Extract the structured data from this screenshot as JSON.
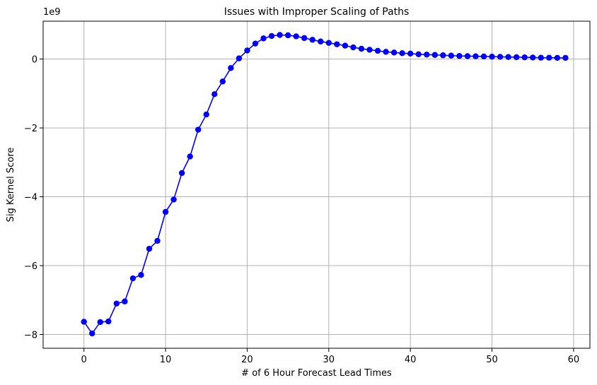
{
  "chart_data": {
    "type": "line",
    "title": "Issues with Improper Scaling of Paths",
    "xlabel": "# of 6 Hour Forecast Lead Times",
    "ylabel": "Sig Kernel Score",
    "y_offset_label": "1e9",
    "xlim": [
      -5,
      62
    ],
    "ylim": [
      -8.4,
      1.1
    ],
    "xticks": [
      0,
      10,
      20,
      30,
      40,
      50,
      60
    ],
    "xtick_labels": [
      "0",
      "10",
      "20",
      "30",
      "40",
      "50",
      "60"
    ],
    "yticks": [
      -8,
      -6,
      -4,
      -2,
      0
    ],
    "ytick_labels": [
      "−8",
      "−6",
      "−4",
      "−2",
      "0"
    ],
    "grid": true,
    "series": [
      {
        "color": "#0000ff",
        "marker": "circle",
        "x": [
          0,
          1,
          2,
          3,
          4,
          5,
          6,
          7,
          8,
          9,
          10,
          11,
          12,
          13,
          14,
          15,
          16,
          17,
          18,
          19,
          20,
          21,
          22,
          23,
          24,
          25,
          26,
          27,
          28,
          29,
          30,
          31,
          32,
          33,
          34,
          35,
          36,
          37,
          38,
          39,
          40,
          41,
          42,
          43,
          44,
          45,
          46,
          47,
          48,
          49,
          50,
          51,
          52,
          53,
          54,
          55,
          56,
          57,
          58,
          59
        ],
        "values": [
          -7.63,
          -7.97,
          -7.64,
          -7.62,
          -7.1,
          -7.04,
          -6.37,
          -6.27,
          -5.51,
          -5.28,
          -4.44,
          -4.08,
          -3.31,
          -2.83,
          -2.05,
          -1.61,
          -1.02,
          -0.65,
          -0.26,
          0.02,
          0.25,
          0.45,
          0.6,
          0.67,
          0.7,
          0.69,
          0.66,
          0.61,
          0.56,
          0.51,
          0.47,
          0.43,
          0.39,
          0.34,
          0.3,
          0.27,
          0.24,
          0.21,
          0.19,
          0.17,
          0.16,
          0.14,
          0.13,
          0.12,
          0.11,
          0.1,
          0.09,
          0.085,
          0.08,
          0.075,
          0.07,
          0.065,
          0.06,
          0.055,
          0.05,
          0.045,
          0.04,
          0.04,
          0.035,
          0.035
        ]
      }
    ]
  }
}
